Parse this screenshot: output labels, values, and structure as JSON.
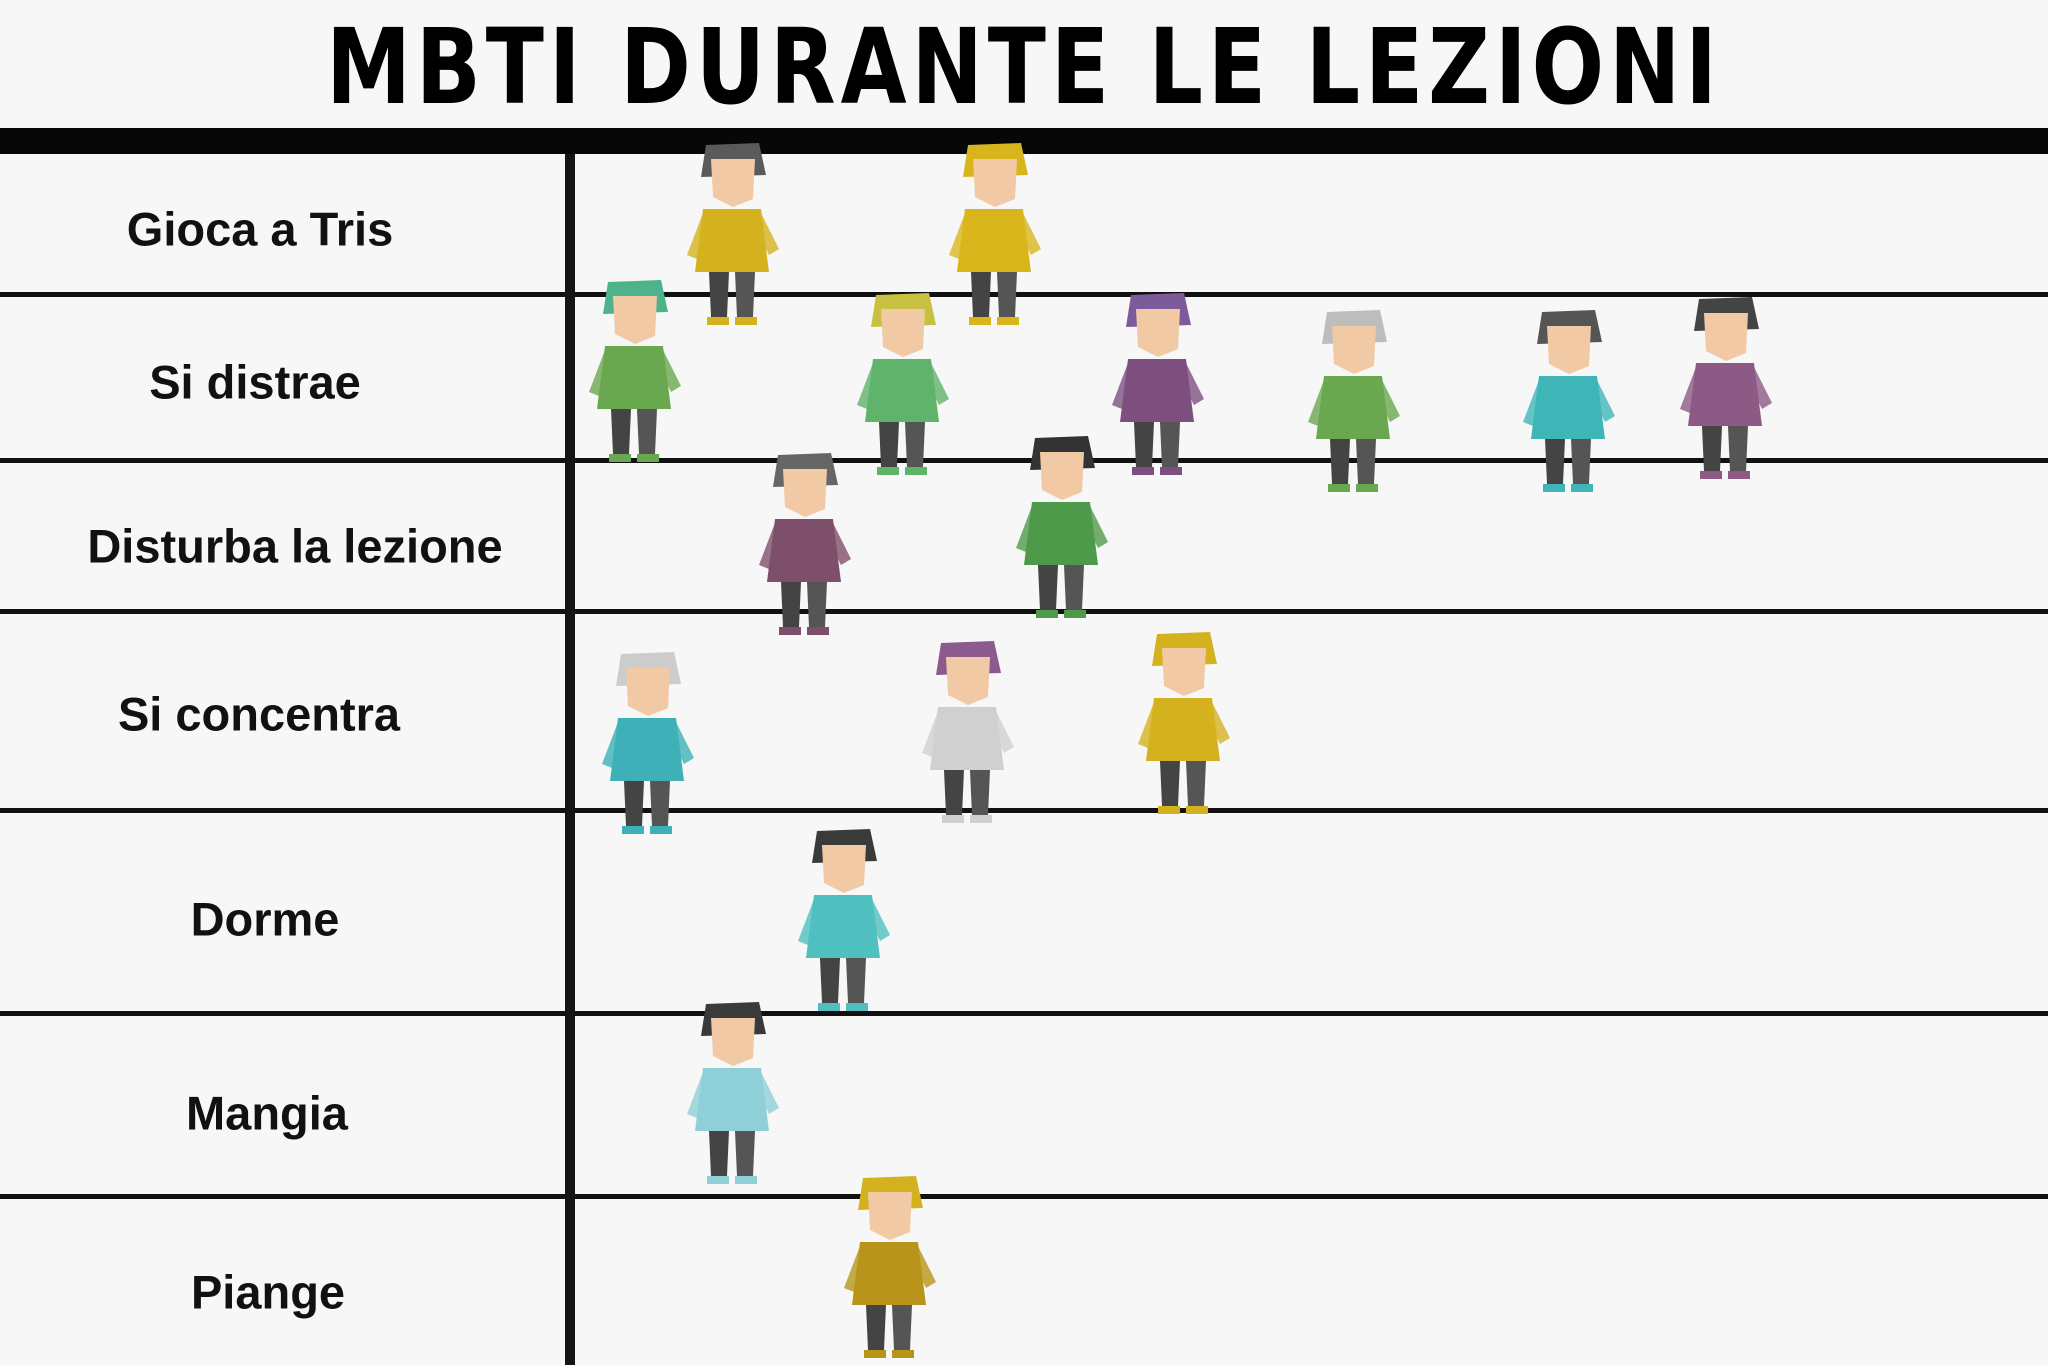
{
  "title": "MBTI DURANTE LE LEZIONI",
  "rows": [
    {
      "label": "Gioca a Tris",
      "figures": [
        {
          "color": "#d4b21f",
          "hair": "#5a5a5a"
        },
        {
          "color": "#d9b51c",
          "hair": "#d9b51c"
        }
      ]
    },
    {
      "label": "Si distrae",
      "figures": [
        {
          "color": "#6aa84f",
          "hair": "#4cb38a"
        },
        {
          "color": "#5fb36a",
          "hair": "#c8c040"
        },
        {
          "color": "#7d4f7f",
          "hair": "#7d5a9a"
        },
        {
          "color": "#6aa84f",
          "hair": "#bdbdbd"
        },
        {
          "color": "#3fb5b8",
          "hair": "#555555"
        },
        {
          "color": "#8c5a85",
          "hair": "#444444"
        }
      ]
    },
    {
      "label": "Disturba la lezione",
      "figures": [
        {
          "color": "#7d4f6a",
          "hair": "#666666"
        },
        {
          "color": "#4f9a4a",
          "hair": "#333333"
        }
      ]
    },
    {
      "label": "Si concentra",
      "figures": [
        {
          "color": "#3fb0b8",
          "hair": "#cccccc"
        },
        {
          "color": "#d0d0d0",
          "hair": "#8c5a8f"
        },
        {
          "color": "#d4b21f",
          "hair": "#d4b21f"
        }
      ]
    },
    {
      "label": "Dorme",
      "figures": [
        {
          "color": "#4fbfbf",
          "hair": "#3a3a3a"
        }
      ]
    },
    {
      "label": "Mangia",
      "figures": [
        {
          "color": "#8fd0d8",
          "hair": "#3a3a3a"
        }
      ]
    },
    {
      "label": "Piange",
      "figures": [
        {
          "color": "#b8951a",
          "hair": "#d4b21f"
        }
      ]
    }
  ]
}
